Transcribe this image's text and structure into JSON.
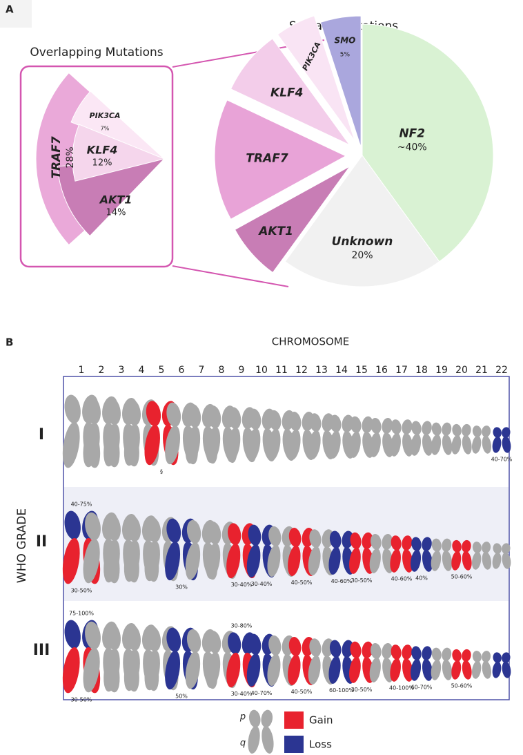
{
  "panel_labels": [
    "A",
    "B"
  ],
  "chart_data": [
    {
      "type": "pie",
      "title": "Somatic Mutations",
      "categories": [
        "NF2",
        "Unknown",
        "AKT1",
        "TRAF7",
        "KLF4",
        "PIK3CA",
        "SMO"
      ],
      "values": [
        40,
        20,
        7,
        15,
        8,
        5,
        5
      ],
      "value_labels": [
        "~40%",
        "20%",
        null,
        null,
        null,
        null,
        "5%"
      ],
      "colors": [
        "#d9f2d3",
        "#f1f1f1",
        "#c87db5",
        "#e8a3d7",
        "#f3cdea",
        "#f9e4f4",
        "#aaa7dd"
      ]
    },
    {
      "type": "fan",
      "title": "Overlapping Mutations",
      "categories": [
        "TRAF7",
        "PIK3CA",
        "AKT1",
        "KLF4"
      ],
      "values": [
        28,
        7,
        14,
        12
      ],
      "value_labels": [
        "28%",
        "7%",
        "14%",
        "12%"
      ],
      "colors": [
        "#eaa9d9",
        "#fbe7f5",
        "#c87db5",
        "#f5d6ec"
      ]
    }
  ],
  "chromosome_panel": {
    "title": "CHROMOSOME",
    "axis_label": "WHO GRADE",
    "numbers": [
      1,
      2,
      3,
      4,
      5,
      6,
      7,
      8,
      9,
      10,
      11,
      12,
      13,
      14,
      15,
      16,
      17,
      18,
      19,
      20,
      21,
      22
    ],
    "chromosome_color": "#a8a8a8",
    "legend_arms": [
      "p",
      "q"
    ],
    "legend": [
      {
        "label": "Gain",
        "color": "#e8222e"
      },
      {
        "label": "Loss",
        "color": "#2b3592"
      }
    ],
    "rows": [
      {
        "grade": "I",
        "changes": [
          {
            "chromosome": 5,
            "arms": [
              "p",
              "q"
            ],
            "type": "Gain"
          },
          {
            "chromosome": 22,
            "arms": [
              "p",
              "q"
            ],
            "type": "Loss"
          }
        ],
        "labels": [
          {
            "chromosome": 5,
            "position": "below",
            "text": "§"
          },
          {
            "chromosome": 22,
            "position": "below",
            "text": "40-70%"
          }
        ]
      },
      {
        "grade": "II",
        "changes": [
          {
            "chromosome": 1,
            "arms": [
              "p"
            ],
            "type": "Loss"
          },
          {
            "chromosome": 1,
            "arms": [
              "q"
            ],
            "type": "Gain"
          },
          {
            "chromosome": 6,
            "arms": [
              "p",
              "q"
            ],
            "type": "Loss"
          },
          {
            "chromosome": 9,
            "arms": [
              "p",
              "q"
            ],
            "type": "Gain"
          },
          {
            "chromosome": 10,
            "arms": [
              "p",
              "q"
            ],
            "type": "Loss"
          },
          {
            "chromosome": 12,
            "arms": [
              "p",
              "q"
            ],
            "type": "Gain"
          },
          {
            "chromosome": 14,
            "arms": [
              "p",
              "q"
            ],
            "type": "Loss"
          },
          {
            "chromosome": 15,
            "arms": [
              "p",
              "q"
            ],
            "type": "Gain"
          },
          {
            "chromosome": 17,
            "arms": [
              "p",
              "q"
            ],
            "type": "Gain"
          },
          {
            "chromosome": 18,
            "arms": [
              "p",
              "q"
            ],
            "type": "Loss"
          },
          {
            "chromosome": 20,
            "arms": [
              "p",
              "q"
            ],
            "type": "Gain"
          }
        ],
        "labels": [
          {
            "chromosome": 1,
            "position": "above",
            "text": "40-75%"
          },
          {
            "chromosome": 1,
            "position": "below",
            "text": "30-50%"
          },
          {
            "chromosome": 6,
            "position": "below",
            "text": "30%"
          },
          {
            "chromosome": 9,
            "position": "below",
            "text": "30-40%"
          },
          {
            "chromosome": 10,
            "position": "below",
            "text": "30-40%"
          },
          {
            "chromosome": 12,
            "position": "below",
            "text": "40-50%"
          },
          {
            "chromosome": 14,
            "position": "below",
            "text": "40-60%"
          },
          {
            "chromosome": 15,
            "position": "below",
            "text": "30-50%"
          },
          {
            "chromosome": 17,
            "position": "below",
            "text": "40-60%"
          },
          {
            "chromosome": 18,
            "position": "below",
            "text": "40%"
          },
          {
            "chromosome": 20,
            "position": "below",
            "text": "50-60%"
          }
        ]
      },
      {
        "grade": "III",
        "changes": [
          {
            "chromosome": 1,
            "arms": [
              "p"
            ],
            "type": "Loss"
          },
          {
            "chromosome": 1,
            "arms": [
              "q"
            ],
            "type": "Gain"
          },
          {
            "chromosome": 6,
            "arms": [
              "p",
              "q"
            ],
            "type": "Loss"
          },
          {
            "chromosome": 9,
            "arms": [
              "p"
            ],
            "type": "Loss"
          },
          {
            "chromosome": 9,
            "arms": [
              "q"
            ],
            "type": "Gain"
          },
          {
            "chromosome": 10,
            "arms": [
              "p",
              "q"
            ],
            "type": "Loss"
          },
          {
            "chromosome": 12,
            "arms": [
              "p",
              "q"
            ],
            "type": "Gain"
          },
          {
            "chromosome": 14,
            "arms": [
              "p",
              "q"
            ],
            "type": "Loss"
          },
          {
            "chromosome": 15,
            "arms": [
              "p",
              "q"
            ],
            "type": "Gain"
          },
          {
            "chromosome": 17,
            "arms": [
              "p",
              "q"
            ],
            "type": "Gain"
          },
          {
            "chromosome": 18,
            "arms": [
              "p",
              "q"
            ],
            "type": "Loss"
          },
          {
            "chromosome": 20,
            "arms": [
              "p",
              "q"
            ],
            "type": "Gain"
          },
          {
            "chromosome": 22,
            "arms": [
              "p",
              "q"
            ],
            "type": "Loss"
          }
        ],
        "labels": [
          {
            "chromosome": 1,
            "position": "above",
            "text": "75-100%"
          },
          {
            "chromosome": 1,
            "position": "below",
            "text": "30-50%"
          },
          {
            "chromosome": 6,
            "position": "below",
            "text": "50%"
          },
          {
            "chromosome": 9,
            "position": "above",
            "text": "30-80%"
          },
          {
            "chromosome": 9,
            "position": "below",
            "text": "30-40%"
          },
          {
            "chromosome": 10,
            "position": "below",
            "text": "40-70%"
          },
          {
            "chromosome": 12,
            "position": "below",
            "text": "40-50%"
          },
          {
            "chromosome": 14,
            "position": "below",
            "text": "60-100%"
          },
          {
            "chromosome": 15,
            "position": "below",
            "text": "30-50%"
          },
          {
            "chromosome": 17,
            "position": "below",
            "text": "40-100%"
          },
          {
            "chromosome": 18,
            "position": "below",
            "text": "60-70%"
          },
          {
            "chromosome": 20,
            "position": "below",
            "text": "50-60%"
          }
        ]
      }
    ]
  }
}
